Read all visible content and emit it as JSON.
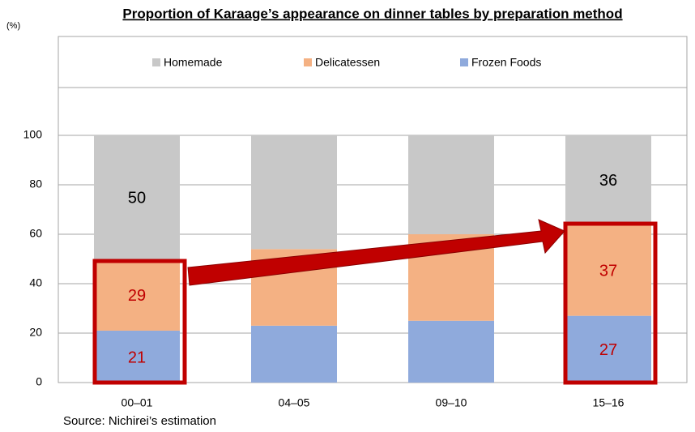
{
  "chart_data": {
    "type": "stacked_bar",
    "title": "Proportion of Karaage’s appearance on dinner tables by preparation method",
    "y_unit": "(%)",
    "source": "Source: Nichirei’s estimation",
    "categories": [
      "00–01",
      "04–05",
      "09–10",
      "15–16"
    ],
    "series": [
      {
        "name": "Frozen Foods",
        "color": "#8faadc",
        "label_color": "#c00000",
        "values": [
          21,
          23,
          25,
          27
        ],
        "value_labels": [
          "21",
          null,
          null,
          "27"
        ]
      },
      {
        "name": "Delicatessen",
        "color": "#f4b183",
        "label_color": "#c00000",
        "values": [
          29,
          31,
          35,
          37
        ],
        "value_labels": [
          "29",
          null,
          null,
          "37"
        ]
      },
      {
        "name": "Homemade",
        "color": "#c8c8c8",
        "label_color": "#000000",
        "values": [
          50,
          46,
          40,
          36
        ],
        "value_labels": [
          "50",
          null,
          null,
          "36"
        ]
      }
    ],
    "ylim": [
      0,
      140
    ],
    "yticks": [
      0,
      20,
      40,
      60,
      80,
      100
    ],
    "grid": true
  }
}
